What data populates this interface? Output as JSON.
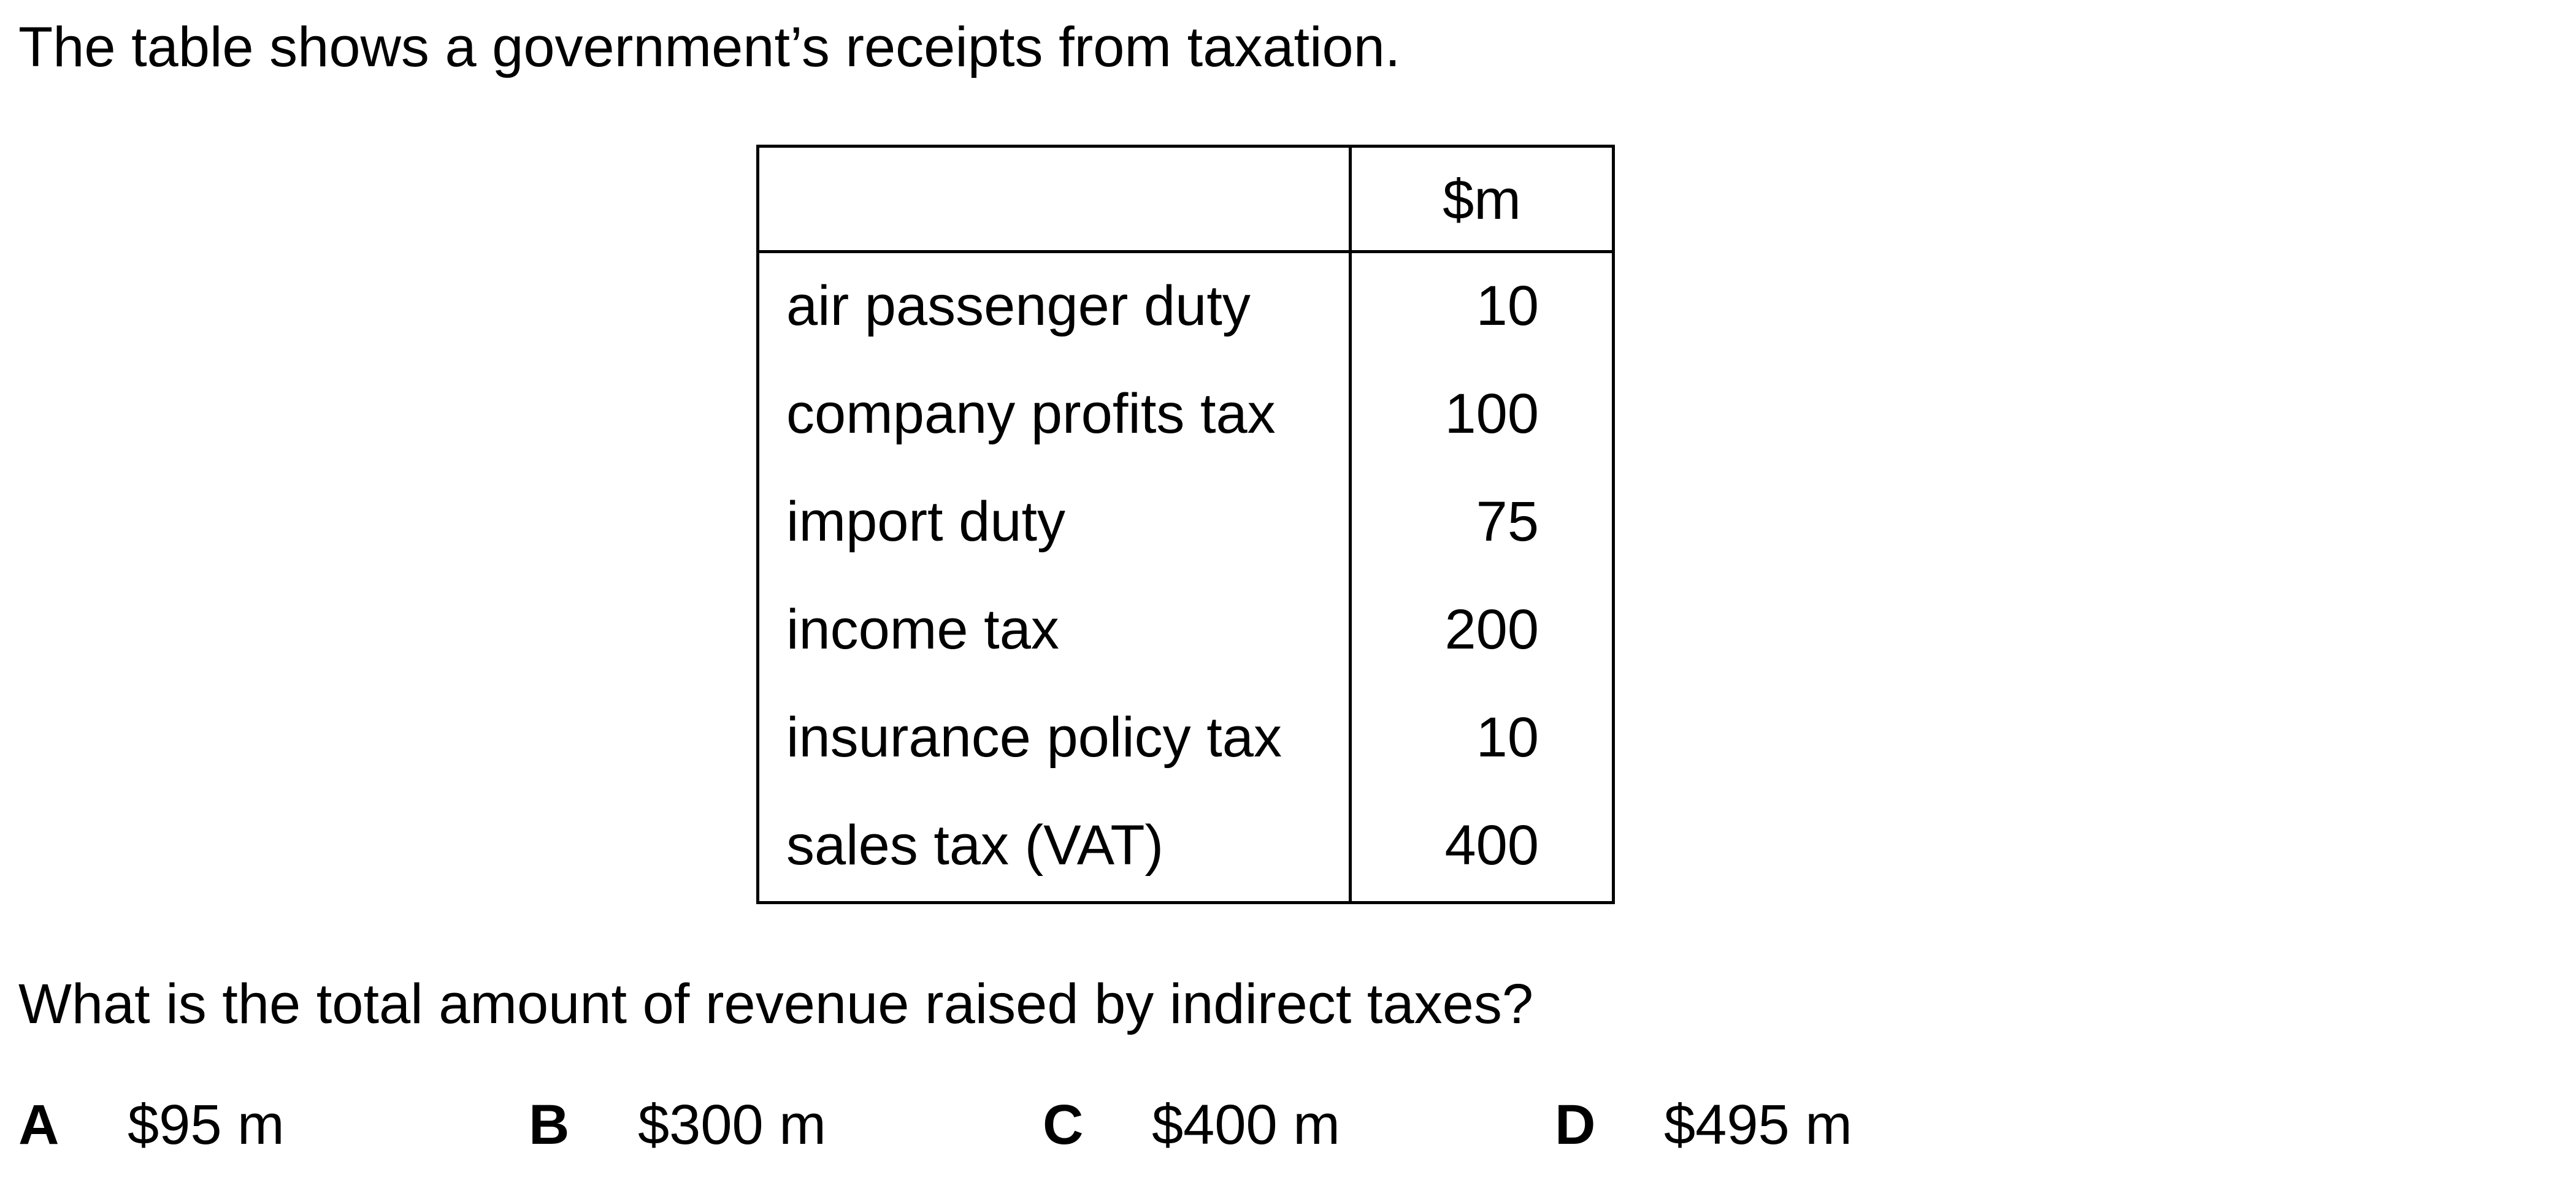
{
  "intro": "The table shows a government’s receipts from taxation.",
  "table": {
    "unit_header": "$m",
    "rows": [
      {
        "label": "air passenger duty",
        "value": "10"
      },
      {
        "label": "company profits tax",
        "value": "100"
      },
      {
        "label": "import duty",
        "value": "75"
      },
      {
        "label": "income tax",
        "value": "200"
      },
      {
        "label": "insurance policy tax",
        "value": "10"
      },
      {
        "label": "sales tax (VAT)",
        "value": "400"
      }
    ]
  },
  "question": "What is the total amount of revenue raised by indirect taxes?",
  "options": [
    {
      "letter": "A",
      "text": "$95 m"
    },
    {
      "letter": "B",
      "text": "$300 m"
    },
    {
      "letter": "C",
      "text": "$400 m"
    },
    {
      "letter": "D",
      "text": "$495 m"
    }
  ]
}
